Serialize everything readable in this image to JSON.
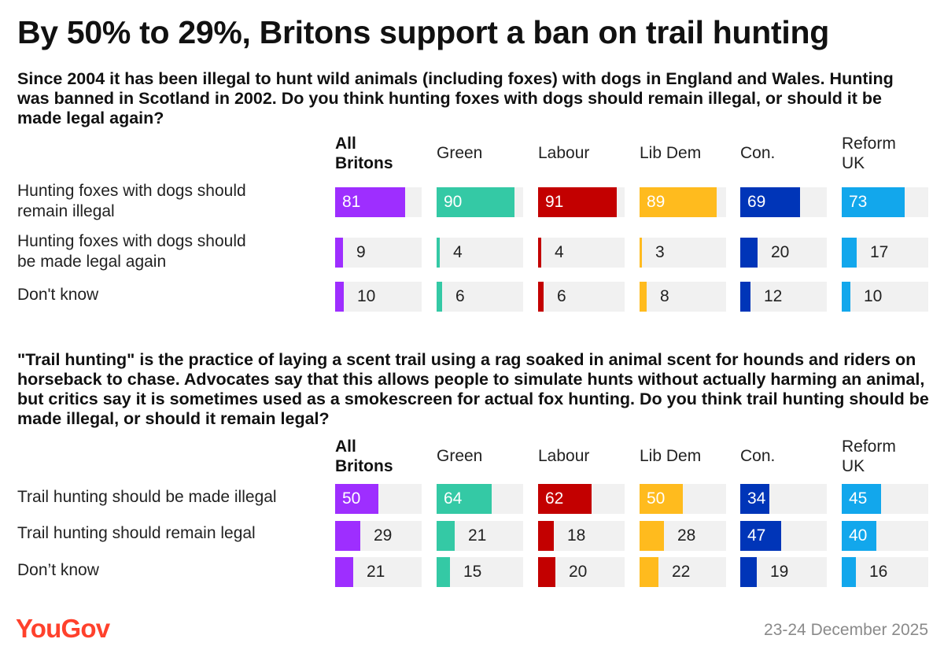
{
  "title": "By 50% to 29%, Britons support a ban on trail hunting",
  "colors": {
    "All Britons": "#9e2eff",
    "Green": "#34c9a5",
    "Labour": "#c30000",
    "Lib Dem": "#ffbb1e",
    "Con.": "#0035b8",
    "Reform UK": "#12a7ec",
    "track": "#f1f1f1",
    "brand": "#ff412c"
  },
  "chart_data": [
    {
      "type": "bar",
      "title": "Since 2004 it has been illegal to hunt wild animals (including foxes) with dogs in England and Wales. Hunting was banned in Scotland in 2002. Do you think hunting foxes with dogs should remain illegal, or should it be made legal again?",
      "columns": [
        {
          "label": "All Britons",
          "lines": [
            "All",
            "Britons"
          ],
          "bold": true
        },
        {
          "label": "Green",
          "lines": [
            "Green"
          ]
        },
        {
          "label": "Labour",
          "lines": [
            "Labour"
          ]
        },
        {
          "label": "Lib Dem",
          "lines": [
            "Lib Dem"
          ]
        },
        {
          "label": "Con.",
          "lines": [
            "Con."
          ]
        },
        {
          "label": "Reform UK",
          "lines": [
            "Reform",
            "UK"
          ]
        }
      ],
      "categories": [
        "Hunting foxes with dogs should remain illegal",
        "Hunting foxes with dogs should be made legal again",
        "Don't know"
      ],
      "category_lines": [
        [
          "Hunting foxes with dogs should",
          "remain illegal"
        ],
        [
          "Hunting foxes with dogs should",
          "be made legal again"
        ],
        [
          "Don't know"
        ]
      ],
      "values": [
        [
          81,
          90,
          91,
          89,
          69,
          73
        ],
        [
          9,
          4,
          4,
          3,
          20,
          17
        ],
        [
          10,
          6,
          6,
          8,
          12,
          10
        ]
      ],
      "xlim": [
        0,
        100
      ],
      "unit": "%"
    },
    {
      "type": "bar",
      "title": "\"Trail hunting\" is the practice of laying a scent trail using a rag soaked in animal scent for hounds and riders on horseback to chase. Advocates say that this allows people to simulate hunts without actually harming an animal, but critics say it is sometimes used as a smokescreen for actual fox hunting. Do you think trail hunting should be made illegal, or should it remain legal?",
      "columns": [
        {
          "label": "All Britons",
          "lines": [
            "All",
            "Britons"
          ],
          "bold": true
        },
        {
          "label": "Green",
          "lines": [
            "Green"
          ]
        },
        {
          "label": "Labour",
          "lines": [
            "Labour"
          ]
        },
        {
          "label": "Lib Dem",
          "lines": [
            "Lib Dem"
          ]
        },
        {
          "label": "Con.",
          "lines": [
            "Con."
          ]
        },
        {
          "label": "Reform UK",
          "lines": [
            "Reform",
            "UK"
          ]
        }
      ],
      "categories": [
        "Trail hunting should be made illegal",
        "Trail hunting should remain legal",
        "Don’t know"
      ],
      "category_lines": [
        [
          "Trail hunting should be made illegal"
        ],
        [
          "Trail hunting should remain legal"
        ],
        [
          "Don’t know"
        ]
      ],
      "values": [
        [
          50,
          64,
          62,
          50,
          34,
          45
        ],
        [
          29,
          21,
          18,
          28,
          47,
          40
        ],
        [
          21,
          15,
          20,
          22,
          19,
          16
        ]
      ],
      "xlim": [
        0,
        100
      ],
      "unit": "%"
    }
  ],
  "footer": {
    "logo": "YouGov",
    "date": "23-24 December 2025"
  }
}
